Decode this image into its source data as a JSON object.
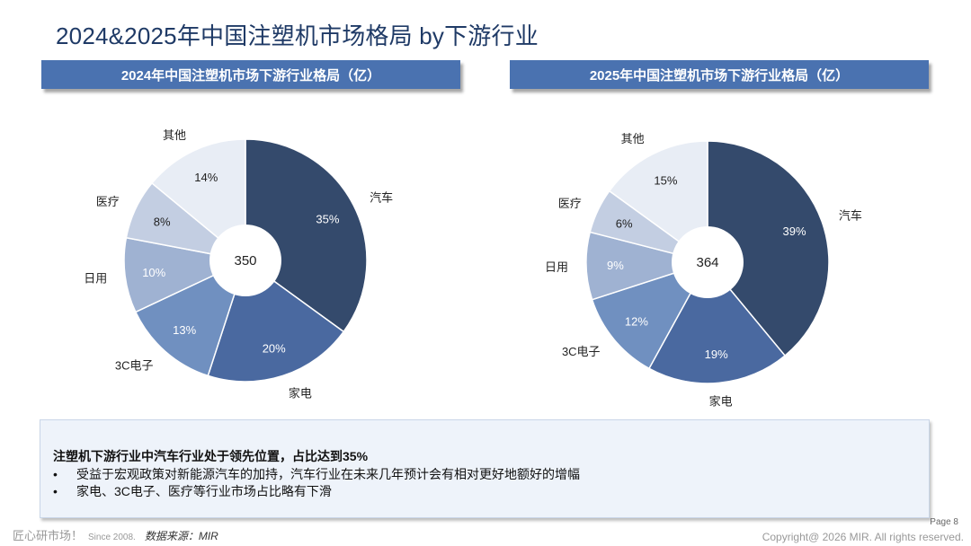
{
  "page_title": "2024&2025年中国注塑机市场格局 by下游行业",
  "chart_data": [
    {
      "type": "pie",
      "title": "2024年中国注塑机市场下游行业格局（亿）",
      "center_label": "350",
      "categories": [
        "汽车",
        "家电",
        "3C电子",
        "日用",
        "医疗",
        "其他"
      ],
      "values": [
        35,
        20,
        13,
        10,
        8,
        14
      ],
      "value_labels": [
        "35%",
        "20%",
        "13%",
        "10%",
        "8%",
        "14%"
      ],
      "colors": [
        "#344a6c",
        "#4a69a0",
        "#7090c0",
        "#9fb2d2",
        "#c3cee2",
        "#e8edf5"
      ]
    },
    {
      "type": "pie",
      "title": "2025年中国注塑机市场下游行业格局（亿）",
      "center_label": "364",
      "categories": [
        "汽车",
        "家电",
        "3C电子",
        "日用",
        "医疗",
        "其他"
      ],
      "values": [
        39,
        19,
        12,
        9,
        6,
        15
      ],
      "value_labels": [
        "39%",
        "19%",
        "12%",
        "9%",
        "6%",
        "15%"
      ],
      "colors": [
        "#344a6c",
        "#4a69a0",
        "#7090c0",
        "#9fb2d2",
        "#c3cee2",
        "#e8edf5"
      ]
    }
  ],
  "summary": {
    "headline": "注塑机下游行业中汽车行业处于领先位置，占比达到35%",
    "bullet_mark": "•",
    "bullets": [
      "受益于宏观政策对新能源汽车的加持，汽车行业在未来几年预计会有相对更好地额好的增幅",
      "家电、3C电子、医疗等行业市场占比略有下滑"
    ]
  },
  "footer": {
    "brand": "匠心研市场！",
    "since": "Since 2008.",
    "source": "数据来源：MIR",
    "page": "Page 8",
    "copyright": "Copyright@ 2026 MIR. All rights reserved."
  }
}
